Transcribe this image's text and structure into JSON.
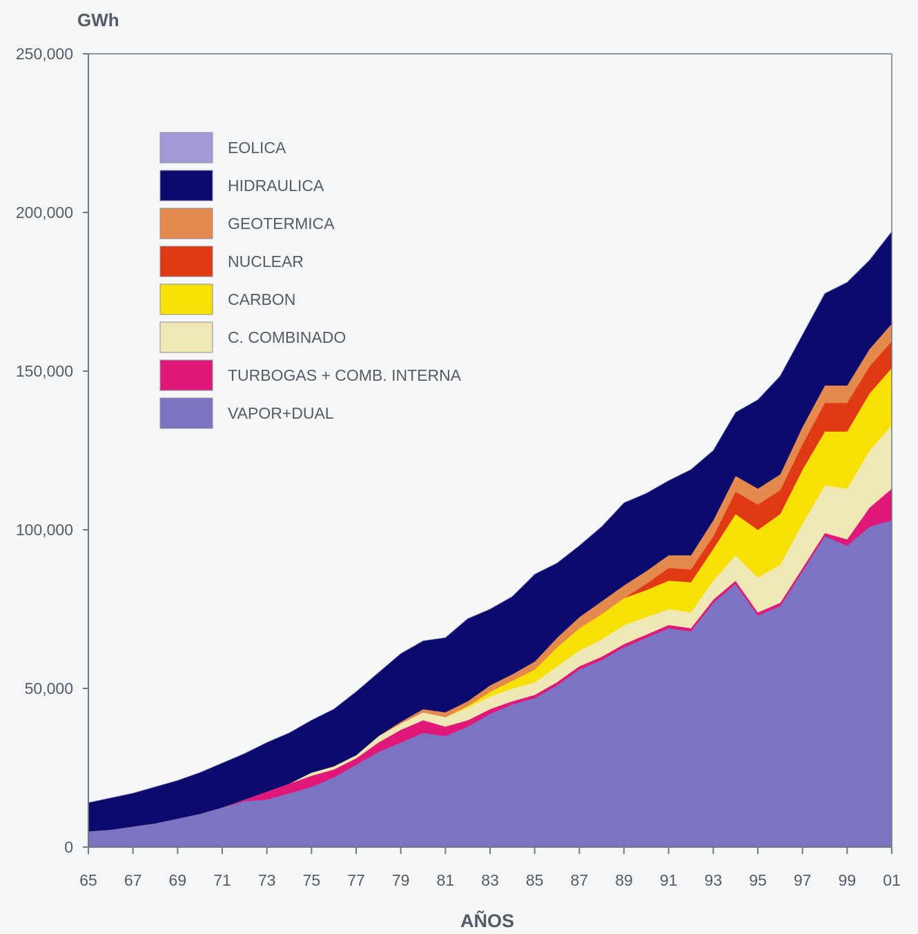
{
  "chart_data": {
    "type": "area",
    "stacked": true,
    "title": "",
    "ylabel": "GWh",
    "xlabel": "AÑOS",
    "ylim": [
      0,
      250000
    ],
    "xlim": [
      1965,
      2001
    ],
    "y_ticks": [
      0,
      50000,
      100000,
      150000,
      200000,
      250000
    ],
    "y_tick_labels": [
      "0",
      "50,000",
      "100,000",
      "150,000",
      "200,000",
      "250,000"
    ],
    "x_ticks": [
      1965,
      1967,
      1969,
      1971,
      1973,
      1975,
      1977,
      1979,
      1981,
      1983,
      1985,
      1987,
      1989,
      1991,
      1993,
      1995,
      1997,
      1999,
      2001
    ],
    "x_tick_labels": [
      "65",
      "67",
      "69",
      "71",
      "73",
      "75",
      "77",
      "79",
      "81",
      "83",
      "85",
      "87",
      "89",
      "91",
      "93",
      "95",
      "97",
      "99",
      "01"
    ],
    "grid": false,
    "legend_position": "top-left",
    "x": [
      1965,
      1966,
      1967,
      1968,
      1969,
      1970,
      1971,
      1972,
      1973,
      1974,
      1975,
      1976,
      1977,
      1978,
      1979,
      1980,
      1981,
      1982,
      1983,
      1984,
      1985,
      1986,
      1987,
      1988,
      1989,
      1990,
      1991,
      1992,
      1993,
      1994,
      1995,
      1996,
      1997,
      1998,
      1999,
      2000,
      2001
    ],
    "series": [
      {
        "name": "VAPOR+DUAL",
        "color": "#7b74c2",
        "values": [
          5000,
          5500,
          6500,
          7500,
          9000,
          10500,
          12500,
          14500,
          15000,
          17000,
          19000,
          22000,
          26000,
          30000,
          33000,
          36000,
          35000,
          38000,
          42000,
          45000,
          47000,
          51000,
          56000,
          59000,
          63000,
          66000,
          69000,
          68000,
          77000,
          83000,
          73000,
          76000,
          87000,
          98000,
          95000,
          101000,
          103000
        ]
      },
      {
        "name": "TURBOGAS + COMB. INTERNA",
        "color": "#e0187a",
        "values": [
          0,
          0,
          0,
          0,
          0,
          0,
          0,
          500,
          2500,
          3000,
          3500,
          2500,
          2000,
          3000,
          4000,
          4000,
          3000,
          2000,
          1500,
          1000,
          1000,
          1000,
          1000,
          1000,
          1000,
          1000,
          1000,
          1000,
          1000,
          1000,
          1000,
          1000,
          1000,
          1000,
          2000,
          6000,
          10000
        ]
      },
      {
        "name": "C. COMBINADO",
        "color": "#efe8b4",
        "values": [
          0,
          0,
          0,
          0,
          0,
          0,
          0,
          0,
          0,
          0,
          1000,
          1000,
          1000,
          2000,
          2000,
          2500,
          3000,
          4000,
          4000,
          4000,
          4000,
          5000,
          5000,
          5500,
          6000,
          5500,
          5000,
          5000,
          6000,
          8000,
          11000,
          12000,
          14000,
          15000,
          16000,
          18000,
          20000
        ]
      },
      {
        "name": "CARBON",
        "color": "#f7e005",
        "values": [
          0,
          0,
          0,
          0,
          0,
          0,
          0,
          0,
          0,
          0,
          0,
          0,
          0,
          0,
          0,
          0,
          0,
          500,
          1500,
          2500,
          4000,
          6000,
          7000,
          8000,
          8500,
          8500,
          9000,
          9500,
          10000,
          13000,
          15000,
          16000,
          17000,
          17000,
          18000,
          18000,
          18000
        ]
      },
      {
        "name": "NUCLEAR",
        "color": "#e03a14",
        "values": [
          0,
          0,
          0,
          0,
          0,
          0,
          0,
          0,
          0,
          0,
          0,
          0,
          0,
          0,
          0,
          0,
          0,
          0,
          0,
          0,
          0,
          0,
          0,
          0,
          0,
          2000,
          4000,
          4000,
          4000,
          7000,
          8000,
          7500,
          8000,
          9000,
          9000,
          8500,
          8500
        ]
      },
      {
        "name": "GEOTERMICA",
        "color": "#e58a4e",
        "values": [
          0,
          0,
          0,
          0,
          0,
          0,
          0,
          0,
          0,
          0,
          0,
          0,
          0,
          0,
          500,
          1000,
          1500,
          1500,
          2000,
          2000,
          2500,
          3000,
          3500,
          4000,
          4000,
          4000,
          4000,
          4500,
          5000,
          5000,
          5000,
          5000,
          5500,
          5500,
          5500,
          5500,
          5500
        ]
      },
      {
        "name": "HIDRAULICA",
        "color": "#0b0b6e",
        "values": [
          9000,
          10000,
          10500,
          11500,
          12000,
          13000,
          14000,
          14500,
          15500,
          16000,
          16500,
          18000,
          20000,
          20000,
          21500,
          21500,
          23500,
          26000,
          24000,
          24500,
          27500,
          23500,
          22500,
          23500,
          26000,
          24500,
          23500,
          27000,
          22000,
          20000,
          28000,
          31000,
          29000,
          29000,
          32500,
          28000,
          29000
        ]
      },
      {
        "name": "EOLICA",
        "color": "#a29ad6",
        "values": [
          0,
          0,
          0,
          0,
          0,
          0,
          0,
          0,
          0,
          0,
          0,
          0,
          0,
          0,
          0,
          0,
          0,
          0,
          0,
          0,
          0,
          0,
          0,
          0,
          0,
          0,
          0,
          0,
          0,
          0,
          0,
          0,
          0,
          0,
          0,
          0,
          100
        ]
      }
    ],
    "legend": [
      {
        "name": "EOLICA",
        "color": "#a29ad6"
      },
      {
        "name": "HIDRAULICA",
        "color": "#0b0b6e"
      },
      {
        "name": "GEOTERMICA",
        "color": "#e58a4e"
      },
      {
        "name": "NUCLEAR",
        "color": "#e03a14"
      },
      {
        "name": "CARBON",
        "color": "#f7e005"
      },
      {
        "name": "C. COMBINADO",
        "color": "#efe8b4"
      },
      {
        "name": "TURBOGAS + COMB. INTERNA",
        "color": "#e0187a"
      },
      {
        "name": "VAPOR+DUAL",
        "color": "#7b74c2"
      }
    ]
  }
}
